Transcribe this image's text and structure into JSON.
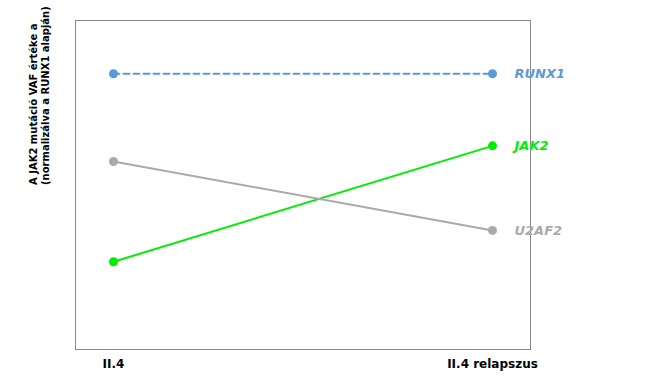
{
  "chart_data": {
    "type": "line",
    "categories": [
      "II.4",
      "II.4 relapszus"
    ],
    "series": [
      {
        "name": "RUNX1",
        "color": "#5b9bd5",
        "line_style": "dashed",
        "marker": "circle",
        "values": [
          0.88,
          0.88
        ]
      },
      {
        "name": "JAK2",
        "color": "#00ee00",
        "line_style": "solid",
        "marker": "circle",
        "values": [
          0.28,
          0.65
        ]
      },
      {
        "name": "U2AF2",
        "color": "#aaaaaa",
        "line_style": "solid",
        "marker": "circle",
        "values": [
          0.6,
          0.38
        ]
      }
    ],
    "y_label": "A JAK2 mutáció VAF értéke a\n(normalizálva a RUNX1 alapján)",
    "ylim": [
      0.0,
      1.05
    ],
    "tick_labels": "x",
    "legend": "right"
  }
}
